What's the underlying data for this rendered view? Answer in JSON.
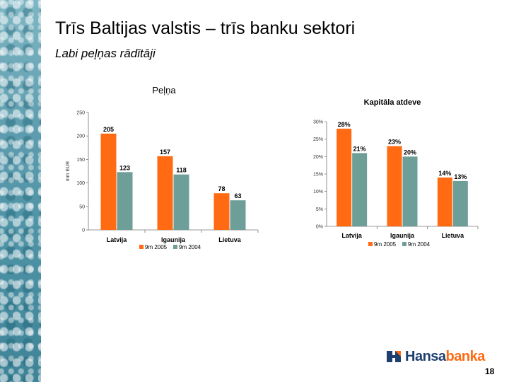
{
  "slide": {
    "title": "Trīs Baltijas valstis – trīs banku sektori",
    "subtitle": "Labi peļņas rādītāji",
    "page_number": "18",
    "logo_text_primary": "Hansa",
    "logo_text_accent": "banka"
  },
  "colors": {
    "series_2005": "#ff6a13",
    "series_2004": "#6e9e98",
    "logo_blue": "#1f3f6e",
    "logo_orange": "#ff6a13"
  },
  "chart_data": [
    {
      "type": "bar",
      "title": "Peļņa",
      "ylabel": "mm EUR",
      "categories": [
        "Latvija",
        "Igaunija",
        "Lietuva"
      ],
      "ylim": [
        0,
        250
      ],
      "yticks": [
        0,
        50,
        100,
        150,
        200,
        250
      ],
      "ytick_labels": [
        "0",
        "50",
        "100",
        "150",
        "200",
        "250"
      ],
      "series": [
        {
          "name": "9m 2005",
          "values": [
            205,
            157,
            78
          ],
          "labels": [
            "205",
            "157",
            "78"
          ]
        },
        {
          "name": "9m 2004",
          "values": [
            123,
            118,
            63
          ],
          "labels": [
            "123",
            "118",
            "63"
          ]
        }
      ],
      "legend": "bottom",
      "grid": false
    },
    {
      "type": "bar",
      "title": "Kapitāla atdeve",
      "ylabel": "",
      "categories": [
        "Latvija",
        "Igaunija",
        "Lietuva"
      ],
      "ylim": [
        0,
        30
      ],
      "yticks": [
        0,
        5,
        10,
        15,
        20,
        25,
        30
      ],
      "ytick_labels": [
        "0%",
        "5%",
        "10%",
        "15%",
        "20%",
        "25%",
        "30%"
      ],
      "series": [
        {
          "name": "9m 2005",
          "values": [
            28,
            23,
            14
          ],
          "labels": [
            "28%",
            "23%",
            "14%"
          ]
        },
        {
          "name": "9m 2004",
          "values": [
            21,
            20,
            13
          ],
          "labels": [
            "21%",
            "20%",
            "13%"
          ]
        }
      ],
      "legend": "bottom",
      "grid": false
    }
  ]
}
